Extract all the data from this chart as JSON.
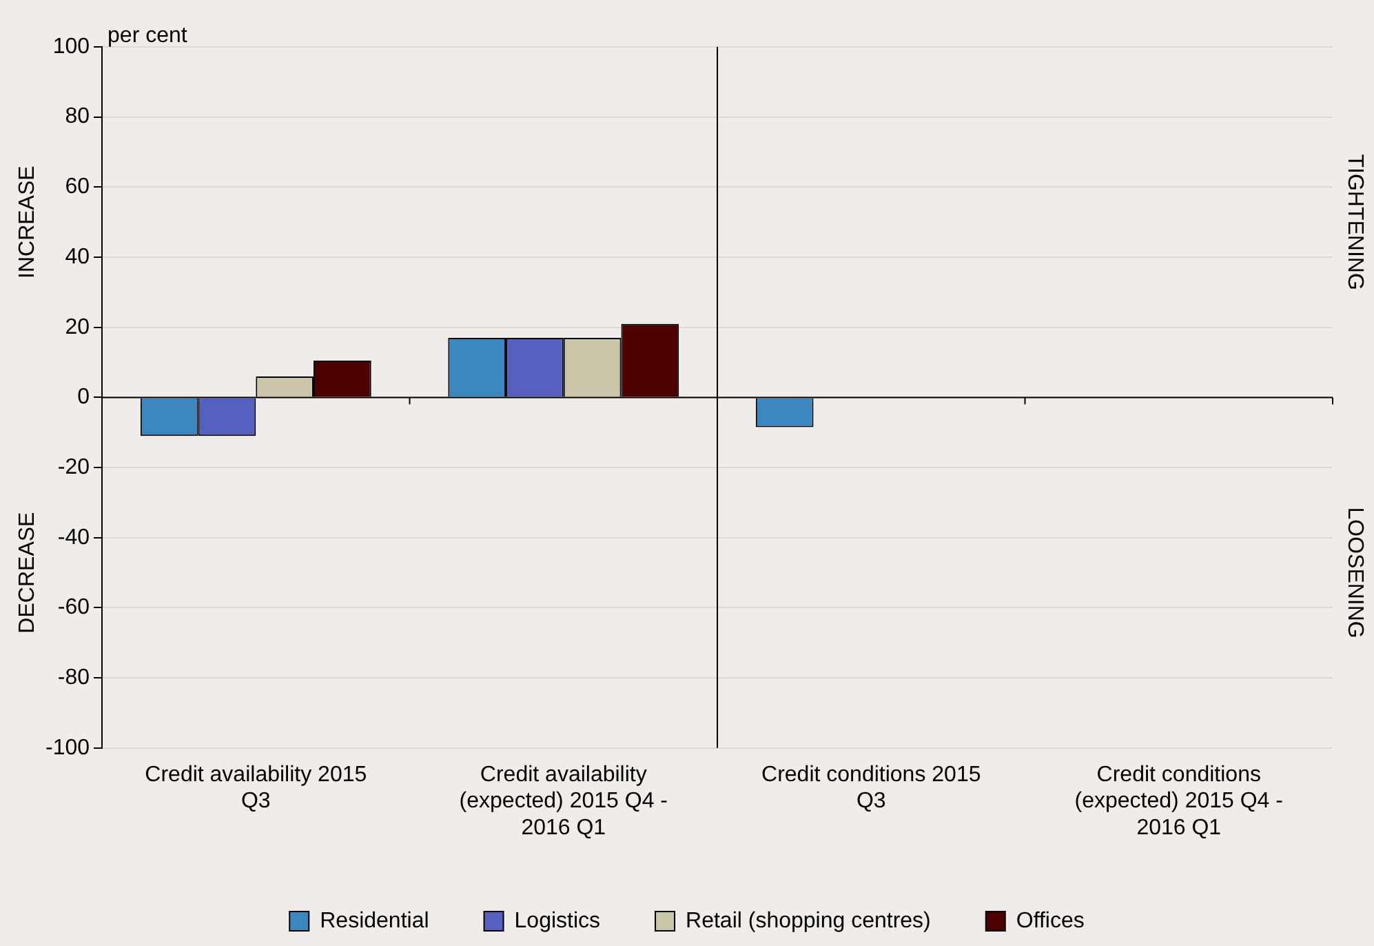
{
  "chart_data": {
    "type": "bar",
    "ylabel": "per cent",
    "categories": [
      "Credit availability 2015 Q3",
      "Credit availability (expected) 2015 Q4 - 2016 Q1",
      "Credit conditions 2015 Q3",
      "Credit conditions (expected) 2015 Q4 - 2016 Q1"
    ],
    "series": [
      {
        "name": "Residential",
        "color": "#3d87c0",
        "values": [
          -11,
          17,
          -8.5,
          0
        ]
      },
      {
        "name": "Logistics",
        "color": "#5560c0",
        "values": [
          -11,
          17,
          0,
          0
        ]
      },
      {
        "name": "Retail (shopping centres)",
        "color": "#cbc5aa",
        "values": [
          6,
          17,
          0,
          0
        ]
      },
      {
        "name": "Offices",
        "color": "#4d0000",
        "values": [
          10.5,
          21,
          0,
          0
        ]
      }
    ],
    "ylim": [
      -100,
      100
    ],
    "yticks": [
      -100,
      -80,
      -60,
      -40,
      -20,
      0,
      20,
      40,
      60,
      80,
      100
    ],
    "grid": "y",
    "legend": "bottom",
    "annotations": [
      "INCREASE",
      "DECREASE",
      "TIGHTENING",
      "LOOSENING"
    ]
  }
}
